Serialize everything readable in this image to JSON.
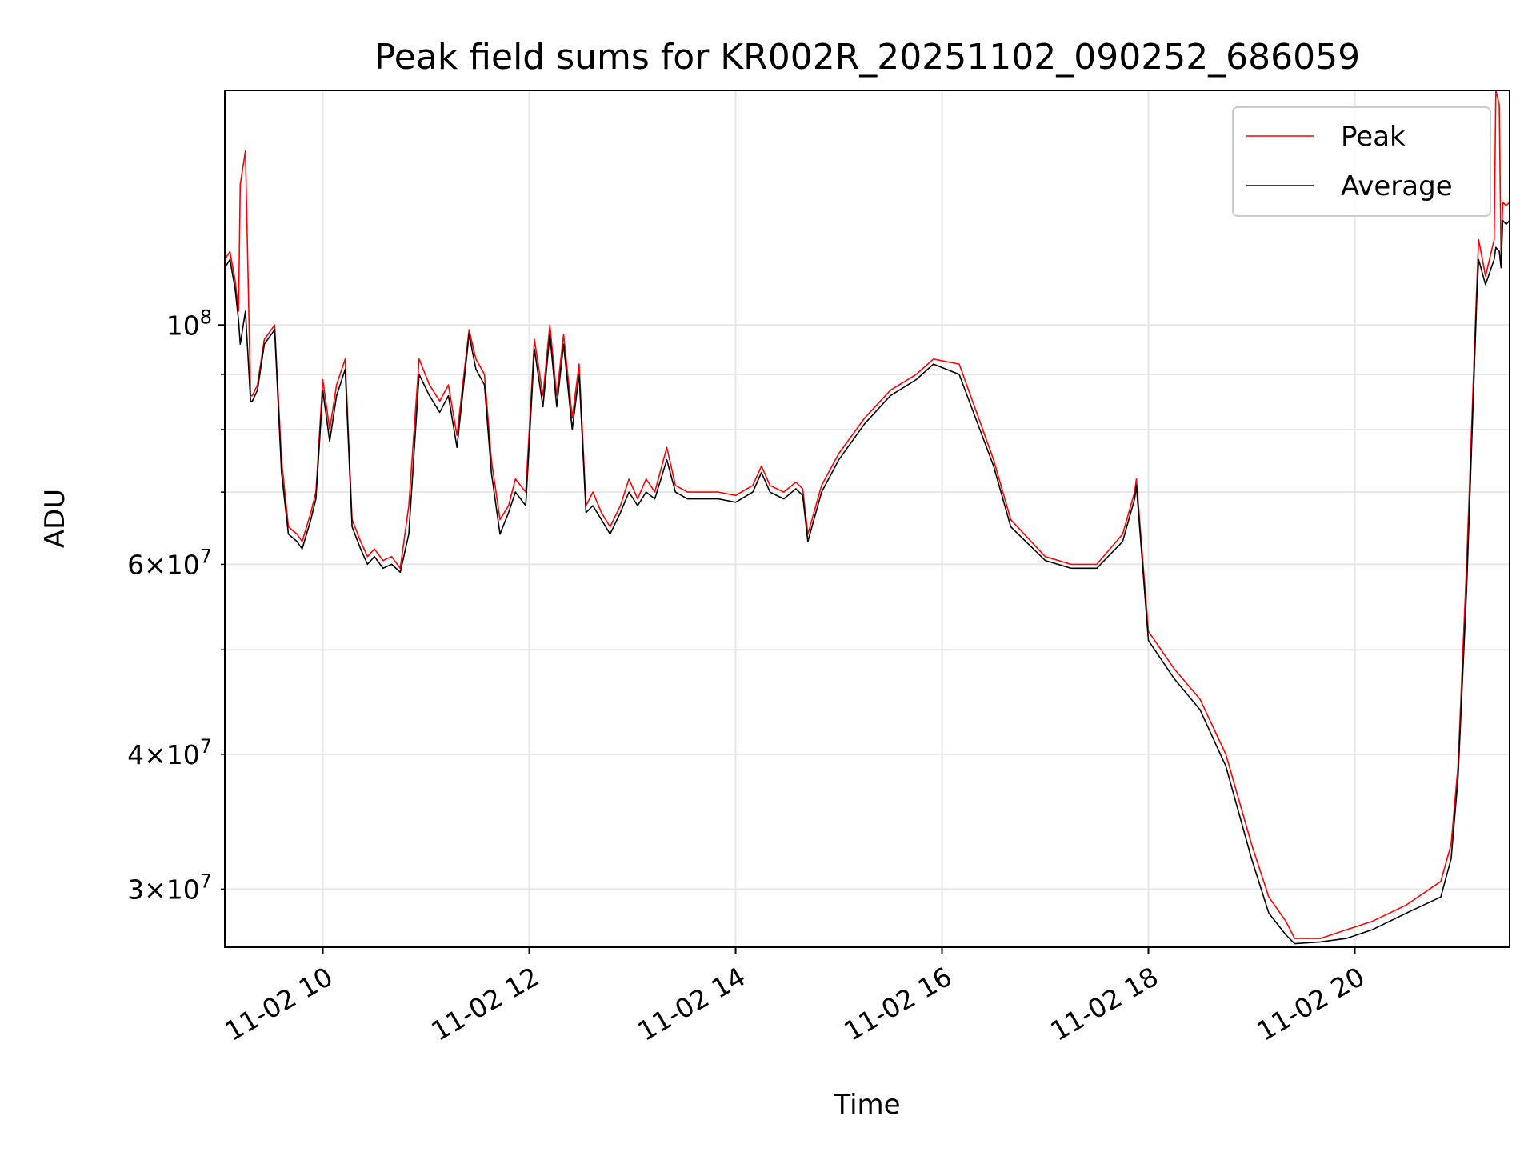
{
  "chart_data": {
    "type": "line",
    "title": "Peak field sums for KR002R_20251102_090252_686059",
    "xlabel": "Time",
    "ylabel": "ADU",
    "y_scale": "log",
    "x_range": [
      "2025-11-02 09:03",
      "2025-11-02 21:30"
    ],
    "ylim": [
      26500000,
      165000000
    ],
    "grid": true,
    "legend_position": "upper right",
    "x_ticks": [
      "11-02 10",
      "11-02 12",
      "11-02 14",
      "11-02 16",
      "11-02 18",
      "11-02 20"
    ],
    "x_tick_times": [
      "2025-11-02 10:00",
      "2025-11-02 12:00",
      "2025-11-02 14:00",
      "2025-11-02 16:00",
      "2025-11-02 18:00",
      "2025-11-02 20:00"
    ],
    "y_major_ticks": [
      {
        "value": 100000000,
        "mantissa": "",
        "base": "10",
        "exp": "8"
      }
    ],
    "y_minor_ticks": [
      {
        "value": 30000000,
        "mantissa": "3×",
        "base": "10",
        "exp": "7"
      },
      {
        "value": 40000000,
        "mantissa": "4×",
        "base": "10",
        "exp": "7"
      },
      {
        "value": 60000000,
        "mantissa": "6×",
        "base": "10",
        "exp": "7"
      }
    ],
    "y_minor_grid_values": [
      30000000,
      40000000,
      50000000,
      60000000,
      70000000,
      80000000,
      90000000
    ],
    "series": [
      {
        "name": "Peak",
        "color": "#ff0000",
        "x": [
          "2025-11-02 09:03",
          "2025-11-02 09:06",
          "2025-11-02 09:09",
          "2025-11-02 09:11",
          "2025-11-02 09:12",
          "2025-11-02 09:15",
          "2025-11-02 09:18",
          "2025-11-02 09:19",
          "2025-11-02 09:22",
          "2025-11-02 09:26",
          "2025-11-02 09:32",
          "2025-11-02 09:36",
          "2025-11-02 09:40",
          "2025-11-02 09:45",
          "2025-11-02 09:48",
          "2025-11-02 09:53",
          "2025-11-02 09:56",
          "2025-11-02 10:00",
          "2025-11-02 10:04",
          "2025-11-02 10:08",
          "2025-11-02 10:13",
          "2025-11-02 10:17",
          "2025-11-02 10:22",
          "2025-11-02 10:26",
          "2025-11-02 10:30",
          "2025-11-02 10:35",
          "2025-11-02 10:40",
          "2025-11-02 10:45",
          "2025-11-02 10:50",
          "2025-11-02 10:56",
          "2025-11-02 11:02",
          "2025-11-02 11:08",
          "2025-11-02 11:13",
          "2025-11-02 11:18",
          "2025-11-02 11:25",
          "2025-11-02 11:29",
          "2025-11-02 11:34",
          "2025-11-02 11:38",
          "2025-11-02 11:43",
          "2025-11-02 11:48",
          "2025-11-02 11:52",
          "2025-11-02 11:58",
          "2025-11-02 12:03",
          "2025-11-02 12:08",
          "2025-11-02 12:12",
          "2025-11-02 12:16",
          "2025-11-02 12:20",
          "2025-11-02 12:25",
          "2025-11-02 12:29",
          "2025-11-02 12:33",
          "2025-11-02 12:37",
          "2025-11-02 12:42",
          "2025-11-02 12:47",
          "2025-11-02 12:53",
          "2025-11-02 12:58",
          "2025-11-02 13:03",
          "2025-11-02 13:08",
          "2025-11-02 13:13",
          "2025-11-02 13:20",
          "2025-11-02 13:25",
          "2025-11-02 13:32",
          "2025-11-02 13:40",
          "2025-11-02 13:50",
          "2025-11-02 14:00",
          "2025-11-02 14:10",
          "2025-11-02 14:15",
          "2025-11-02 14:20",
          "2025-11-02 14:28",
          "2025-11-02 14:35",
          "2025-11-02 14:39",
          "2025-11-02 14:42",
          "2025-11-02 14:50",
          "2025-11-02 15:00",
          "2025-11-02 15:15",
          "2025-11-02 15:30",
          "2025-11-02 15:45",
          "2025-11-02 15:55",
          "2025-11-02 16:10",
          "2025-11-02 16:30",
          "2025-11-02 16:40",
          "2025-11-02 17:00",
          "2025-11-02 17:15",
          "2025-11-02 17:30",
          "2025-11-02 17:45",
          "2025-11-02 17:52",
          "2025-11-02 17:53",
          "2025-11-02 18:00",
          "2025-11-02 18:15",
          "2025-11-02 18:30",
          "2025-11-02 18:45",
          "2025-11-02 19:00",
          "2025-11-02 19:10",
          "2025-11-02 19:20",
          "2025-11-02 19:25",
          "2025-11-02 19:40",
          "2025-11-02 19:55",
          "2025-11-02 20:10",
          "2025-11-02 20:30",
          "2025-11-02 20:50",
          "2025-11-02 20:56",
          "2025-11-02 21:00",
          "2025-11-02 21:05",
          "2025-11-02 21:11",
          "2025-11-02 21:12",
          "2025-11-02 21:16",
          "2025-11-02 21:21",
          "2025-11-02 21:22",
          "2025-11-02 21:24",
          "2025-11-02 21:25",
          "2025-11-02 21:26",
          "2025-11-02 21:28",
          "2025-11-02 21:30"
        ],
        "y": [
          115000000,
          117000000,
          110000000,
          103000000,
          135000000,
          145000000,
          86000000,
          86000000,
          88000000,
          97000000,
          100000000,
          75000000,
          65000000,
          64000000,
          63000000,
          67000000,
          70000000,
          89000000,
          80000000,
          88000000,
          93000000,
          66000000,
          63000000,
          61000000,
          62000000,
          60500000,
          61000000,
          59500000,
          68000000,
          93000000,
          88000000,
          85000000,
          88000000,
          79000000,
          99000000,
          93000000,
          90000000,
          75000000,
          66000000,
          68000000,
          72000000,
          70000000,
          97000000,
          86000000,
          100000000,
          86000000,
          98000000,
          82000000,
          92000000,
          68000000,
          70000000,
          67000000,
          65000000,
          68000000,
          72000000,
          69000000,
          72000000,
          70000000,
          77000000,
          71000000,
          70000000,
          70000000,
          70000000,
          69500000,
          71000000,
          74000000,
          71000000,
          70000000,
          71500000,
          70500000,
          64000000,
          71000000,
          76000000,
          82000000,
          87000000,
          90000000,
          93000000,
          92000000,
          75000000,
          66000000,
          61000000,
          60000000,
          60000000,
          64000000,
          70000000,
          72000000,
          52000000,
          48000000,
          45000000,
          40000000,
          33000000,
          29500000,
          28000000,
          27000000,
          27000000,
          27500000,
          28000000,
          29000000,
          30500000,
          33000000,
          39000000,
          60000000,
          110000000,
          120000000,
          111000000,
          120000000,
          165000000,
          160000000,
          115000000,
          130000000,
          129000000,
          130000000
        ]
      },
      {
        "name": "Average",
        "color": "#000000",
        "x": [
          "2025-11-02 09:03",
          "2025-11-02 09:06",
          "2025-11-02 09:09",
          "2025-11-02 09:11",
          "2025-11-02 09:12",
          "2025-11-02 09:15",
          "2025-11-02 09:18",
          "2025-11-02 09:19",
          "2025-11-02 09:22",
          "2025-11-02 09:26",
          "2025-11-02 09:32",
          "2025-11-02 09:36",
          "2025-11-02 09:40",
          "2025-11-02 09:45",
          "2025-11-02 09:48",
          "2025-11-02 09:53",
          "2025-11-02 09:56",
          "2025-11-02 10:00",
          "2025-11-02 10:04",
          "2025-11-02 10:08",
          "2025-11-02 10:13",
          "2025-11-02 10:17",
          "2025-11-02 10:22",
          "2025-11-02 10:26",
          "2025-11-02 10:30",
          "2025-11-02 10:35",
          "2025-11-02 10:40",
          "2025-11-02 10:45",
          "2025-11-02 10:50",
          "2025-11-02 10:56",
          "2025-11-02 11:02",
          "2025-11-02 11:08",
          "2025-11-02 11:13",
          "2025-11-02 11:18",
          "2025-11-02 11:25",
          "2025-11-02 11:29",
          "2025-11-02 11:34",
          "2025-11-02 11:38",
          "2025-11-02 11:43",
          "2025-11-02 11:48",
          "2025-11-02 11:52",
          "2025-11-02 11:58",
          "2025-11-02 12:03",
          "2025-11-02 12:08",
          "2025-11-02 12:12",
          "2025-11-02 12:16",
          "2025-11-02 12:20",
          "2025-11-02 12:25",
          "2025-11-02 12:29",
          "2025-11-02 12:33",
          "2025-11-02 12:37",
          "2025-11-02 12:42",
          "2025-11-02 12:47",
          "2025-11-02 12:53",
          "2025-11-02 12:58",
          "2025-11-02 13:03",
          "2025-11-02 13:08",
          "2025-11-02 13:13",
          "2025-11-02 13:20",
          "2025-11-02 13:25",
          "2025-11-02 13:32",
          "2025-11-02 13:40",
          "2025-11-02 13:50",
          "2025-11-02 14:00",
          "2025-11-02 14:10",
          "2025-11-02 14:15",
          "2025-11-02 14:20",
          "2025-11-02 14:28",
          "2025-11-02 14:35",
          "2025-11-02 14:39",
          "2025-11-02 14:42",
          "2025-11-02 14:50",
          "2025-11-02 15:00",
          "2025-11-02 15:15",
          "2025-11-02 15:30",
          "2025-11-02 15:45",
          "2025-11-02 15:55",
          "2025-11-02 16:10",
          "2025-11-02 16:30",
          "2025-11-02 16:40",
          "2025-11-02 17:00",
          "2025-11-02 17:15",
          "2025-11-02 17:30",
          "2025-11-02 17:45",
          "2025-11-02 17:52",
          "2025-11-02 17:53",
          "2025-11-02 18:00",
          "2025-11-02 18:15",
          "2025-11-02 18:30",
          "2025-11-02 18:45",
          "2025-11-02 19:00",
          "2025-11-02 19:10",
          "2025-11-02 19:20",
          "2025-11-02 19:25",
          "2025-11-02 19:40",
          "2025-11-02 19:55",
          "2025-11-02 20:10",
          "2025-11-02 20:30",
          "2025-11-02 20:50",
          "2025-11-02 20:56",
          "2025-11-02 21:00",
          "2025-11-02 21:05",
          "2025-11-02 21:11",
          "2025-11-02 21:12",
          "2025-11-02 21:16",
          "2025-11-02 21:21",
          "2025-11-02 21:22",
          "2025-11-02 21:24",
          "2025-11-02 21:25",
          "2025-11-02 21:26",
          "2025-11-02 21:28",
          "2025-11-02 21:30"
        ],
        "y": [
          113000000,
          115000000,
          108000000,
          101000000,
          96000000,
          103000000,
          85000000,
          85000000,
          87000000,
          96000000,
          99000000,
          73000000,
          64000000,
          63000000,
          62000000,
          66000000,
          69000000,
          87000000,
          78000000,
          86000000,
          91000000,
          65000000,
          62000000,
          60000000,
          61000000,
          59500000,
          60000000,
          59000000,
          64000000,
          90000000,
          86000000,
          83000000,
          86000000,
          77000000,
          98000000,
          91000000,
          88000000,
          73000000,
          64000000,
          67000000,
          70000000,
          68000000,
          95000000,
          84000000,
          98000000,
          84000000,
          96000000,
          80000000,
          90000000,
          67000000,
          68000000,
          66000000,
          64000000,
          67000000,
          70000000,
          68000000,
          70000000,
          69000000,
          75000000,
          70000000,
          69000000,
          69000000,
          69000000,
          68500000,
          70000000,
          73000000,
          70000000,
          69000000,
          70500000,
          69500000,
          63000000,
          70000000,
          75000000,
          81000000,
          86000000,
          89000000,
          92000000,
          90000000,
          74000000,
          65000000,
          60500000,
          59500000,
          59500000,
          63000000,
          69000000,
          71000000,
          51000000,
          47000000,
          44000000,
          39000000,
          32000000,
          28500000,
          27200000,
          26700000,
          26800000,
          27000000,
          27500000,
          28500000,
          29500000,
          32000000,
          38000000,
          57000000,
          107000000,
          115000000,
          109000000,
          115000000,
          118000000,
          117000000,
          113000000,
          125000000,
          124000000,
          125000000
        ]
      }
    ]
  }
}
